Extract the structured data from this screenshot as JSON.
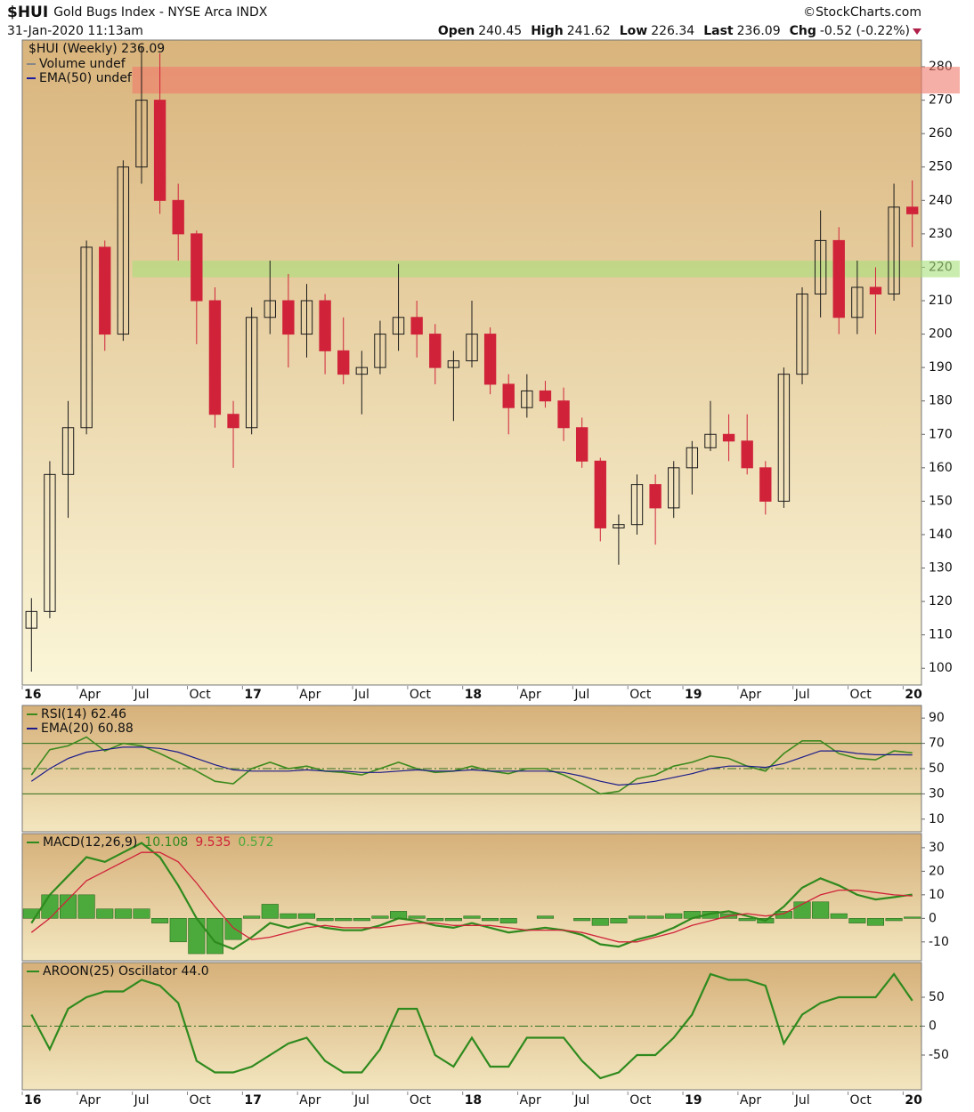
{
  "header": {
    "symbol": "$HUI",
    "name": "Gold Bugs Index - NYSE Arca INDX",
    "date": "31-Jan-2020 11:13am",
    "credit": "©StockCharts.com",
    "quote": [
      {
        "label": "Open",
        "value": "240.45"
      },
      {
        "label": "High",
        "value": "241.62"
      },
      {
        "label": "Low",
        "value": "226.34"
      },
      {
        "label": "Last",
        "value": "236.09"
      },
      {
        "label": "Chg",
        "value": "-0.52 (-0.22%)"
      }
    ]
  },
  "chart_data": [
    {
      "type": "candlestick",
      "title": "$HUI (Weekly) 236.09",
      "legend": [
        "Volume undef",
        "EMA(50) undef"
      ],
      "categories": [
        "16",
        null,
        null,
        "Apr",
        null,
        null,
        "Jul",
        null,
        null,
        "Oct",
        null,
        null,
        "17",
        null,
        null,
        "Apr",
        null,
        null,
        "Jul",
        null,
        null,
        "Oct",
        null,
        null,
        "18",
        null,
        null,
        "Apr",
        null,
        null,
        "Jul",
        null,
        null,
        "Oct",
        null,
        null,
        "19",
        null,
        null,
        "Apr",
        null,
        null,
        "Jul",
        null,
        null,
        "Oct",
        null,
        null,
        "20"
      ],
      "open": [
        112,
        117,
        158,
        172,
        226,
        200,
        250,
        270,
        240,
        230,
        210,
        176,
        172,
        205,
        210,
        200,
        210,
        195,
        188,
        190,
        200,
        205,
        200,
        190,
        192,
        200,
        185,
        178,
        183,
        180,
        172,
        162,
        142,
        143,
        155,
        148,
        160,
        166,
        170,
        168,
        160,
        150,
        188,
        212,
        228,
        205,
        214,
        212,
        238
      ],
      "high": [
        121,
        162,
        180,
        228,
        228,
        252,
        286,
        284,
        245,
        231,
        214,
        180,
        208,
        222,
        218,
        215,
        212,
        205,
        195,
        204,
        221,
        210,
        203,
        195,
        210,
        202,
        188,
        188,
        186,
        184,
        175,
        163,
        146,
        158,
        158,
        162,
        168,
        180,
        176,
        176,
        162,
        190,
        214,
        237,
        232,
        222,
        220,
        245,
        246
      ],
      "low": [
        99,
        115,
        145,
        170,
        195,
        198,
        245,
        236,
        222,
        197,
        172,
        160,
        170,
        200,
        190,
        193,
        188,
        185,
        176,
        188,
        195,
        193,
        185,
        174,
        190,
        182,
        170,
        175,
        178,
        168,
        160,
        138,
        131,
        140,
        137,
        145,
        152,
        165,
        162,
        158,
        146,
        148,
        185,
        205,
        200,
        200,
        200,
        210,
        226
      ],
      "close": [
        117,
        158,
        172,
        226,
        200,
        250,
        270,
        240,
        230,
        210,
        176,
        172,
        205,
        210,
        200,
        210,
        195,
        188,
        190,
        200,
        205,
        200,
        190,
        192,
        200,
        185,
        178,
        183,
        180,
        172,
        162,
        142,
        143,
        155,
        148,
        160,
        166,
        170,
        168,
        160,
        150,
        188,
        212,
        228,
        205,
        214,
        212,
        238,
        236
      ],
      "up_color": "#1a1a1a",
      "down_color": "#d0233a",
      "legend_color": "#1c1ca0",
      "ylim": [
        95,
        288
      ],
      "yticks": [
        100,
        110,
        120,
        130,
        140,
        150,
        160,
        170,
        180,
        190,
        200,
        210,
        220,
        230,
        240,
        250,
        260,
        270,
        280
      ],
      "bands": [
        {
          "from": 272,
          "to": 280,
          "color": "#f07a6a"
        },
        {
          "from": 217,
          "to": 222,
          "color": "#a8e07a"
        }
      ]
    },
    {
      "type": "line",
      "series": [
        {
          "name": "RSI(14) 62.46",
          "color": "#3c8a1e",
          "values": [
            45,
            65,
            68,
            75,
            64,
            70,
            68,
            62,
            55,
            48,
            40,
            38,
            50,
            55,
            50,
            52,
            48,
            47,
            45,
            50,
            55,
            50,
            47,
            48,
            52,
            48,
            46,
            50,
            50,
            45,
            38,
            30,
            32,
            42,
            45,
            52,
            55,
            60,
            58,
            52,
            48,
            62,
            72,
            72,
            62,
            58,
            57,
            64,
            62.46
          ]
        },
        {
          "name": "EMA(20) 60.88",
          "color": "#1c1c8a",
          "values": [
            40,
            50,
            58,
            63,
            65,
            67,
            67,
            66,
            63,
            58,
            53,
            49,
            48,
            48,
            48,
            49,
            48,
            48,
            47,
            47,
            48,
            49,
            48,
            48,
            49,
            48,
            48,
            48,
            48,
            47,
            44,
            40,
            37,
            38,
            40,
            43,
            46,
            50,
            52,
            52,
            51,
            54,
            59,
            64,
            64,
            62,
            61,
            61,
            60.88
          ]
        }
      ],
      "ylim": [
        0,
        100
      ],
      "yticks": [
        10,
        30,
        50,
        70,
        90
      ],
      "levels": [
        30,
        50,
        70
      ],
      "level_color": "#2f6e1a"
    },
    {
      "type": "macd",
      "title": "MACD(12,26,9)",
      "series": [
        {
          "name": "10.108",
          "color": "#2f8a1e",
          "values": [
            -2,
            10,
            18,
            26,
            24,
            28,
            32,
            26,
            14,
            0,
            -10,
            -13,
            -8,
            -2,
            -4,
            -2,
            -4,
            -5,
            -5,
            -3,
            0,
            -1,
            -3,
            -4,
            -2,
            -4,
            -6,
            -5,
            -4,
            -5,
            -7,
            -11,
            -12,
            -9,
            -7,
            -4,
            0,
            2,
            3,
            1,
            -1,
            5,
            13,
            17,
            14,
            10,
            8,
            9,
            10.108
          ]
        },
        {
          "name": "9.535",
          "color": "#d0233a",
          "values": [
            -6,
            0,
            8,
            16,
            20,
            24,
            28,
            28,
            24,
            15,
            5,
            -4,
            -9,
            -8,
            -6,
            -4,
            -3,
            -4,
            -4,
            -4,
            -3,
            -2,
            -2,
            -3,
            -3,
            -3,
            -4,
            -5,
            -5,
            -5,
            -6,
            -8,
            -10,
            -10,
            -8,
            -6,
            -3,
            -1,
            1,
            2,
            1,
            2,
            6,
            10,
            12,
            12,
            11,
            10,
            9.535
          ]
        },
        {
          "name": "0.572",
          "color": "#4caa3c",
          "style": "bar",
          "values": [
            4,
            10,
            10,
            10,
            4,
            4,
            4,
            -2,
            -10,
            -15,
            -15,
            -9,
            1,
            6,
            2,
            2,
            -1,
            -1,
            -1,
            1,
            3,
            1,
            -1,
            -1,
            1,
            -1,
            -2,
            0,
            1,
            0,
            -1,
            -3,
            -2,
            1,
            1,
            2,
            3,
            3,
            2,
            -1,
            -2,
            3,
            7,
            7,
            2,
            -2,
            -3,
            -1,
            0.572
          ]
        }
      ],
      "ylim": [
        -18,
        36
      ],
      "yticks": [
        -10,
        0,
        10,
        20,
        30
      ]
    },
    {
      "type": "line",
      "title": "AROON(25) Oscillator 44.0",
      "color": "#2f8a1e",
      "values": [
        20,
        -40,
        30,
        50,
        60,
        60,
        80,
        70,
        40,
        -60,
        -80,
        -80,
        -70,
        -50,
        -30,
        -20,
        -60,
        -80,
        -80,
        -40,
        30,
        30,
        -50,
        -70,
        -20,
        -70,
        -70,
        -20,
        -20,
        -20,
        -60,
        -90,
        -80,
        -50,
        -50,
        -20,
        20,
        90,
        80,
        80,
        70,
        -30,
        20,
        40,
        50,
        50,
        50,
        90,
        44
      ],
      "ylim": [
        -110,
        110
      ],
      "yticks": [
        -50,
        0,
        50
      ],
      "levels": [
        0
      ],
      "level_color": "#2f6e1a"
    }
  ]
}
